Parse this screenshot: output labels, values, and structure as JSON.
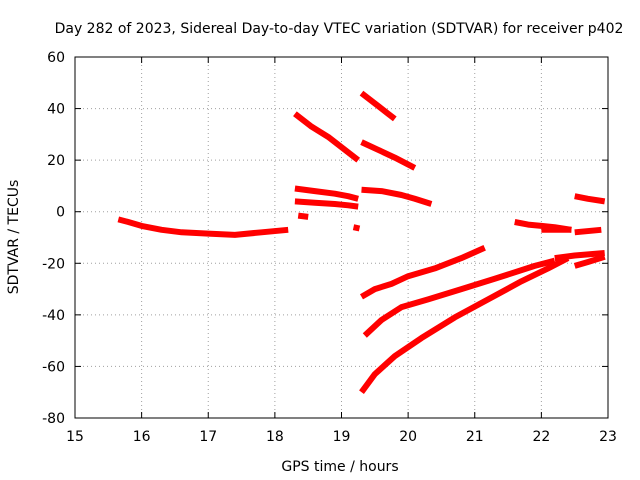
{
  "chart_data": {
    "type": "scatter",
    "title": "Day 282 of 2023, Sidereal Day-to-day VTEC variation (SDTVAR) for receiver p402",
    "xlabel": "GPS time / hours",
    "ylabel": "SDTVAR / TECUs",
    "xlim": [
      15,
      23
    ],
    "ylim": [
      -80,
      60
    ],
    "xticks": [
      "15",
      "16",
      "17",
      "18",
      "19",
      "20",
      "21",
      "22",
      "23"
    ],
    "yticks": [
      "-80",
      "-60",
      "-40",
      "-20",
      "0",
      "20",
      "40",
      "60"
    ],
    "grid": true,
    "color": "#ff0000",
    "series": [
      {
        "x": [
          15.65,
          15.8,
          16.0,
          16.3,
          16.6,
          17.0,
          17.4,
          17.8,
          18.2
        ],
        "y": [
          -3,
          -4,
          -5.5,
          -7,
          -8,
          -8.5,
          -9,
          -8,
          -7
        ]
      },
      {
        "x": [
          18.3,
          18.55,
          18.8,
          19.05,
          19.25
        ],
        "y": [
          38,
          33,
          29,
          24,
          20
        ]
      },
      {
        "x": [
          18.3,
          18.6,
          18.9,
          19.1,
          19.25
        ],
        "y": [
          9,
          8,
          7,
          6,
          5
        ]
      },
      {
        "x": [
          18.3,
          18.6,
          18.9,
          19.1,
          19.25
        ],
        "y": [
          4,
          3.5,
          3,
          2.5,
          2
        ]
      },
      {
        "x": [
          18.35,
          18.5
        ],
        "y": [
          -1.5,
          -2
        ]
      },
      {
        "x": [
          19.18,
          19.27
        ],
        "y": [
          -6,
          -6.5
        ]
      },
      {
        "x": [
          19.3,
          19.5,
          19.7,
          19.8
        ],
        "y": [
          46,
          42,
          38,
          36
        ]
      },
      {
        "x": [
          19.3,
          19.55,
          19.8,
          20.1
        ],
        "y": [
          27,
          24,
          21,
          17
        ]
      },
      {
        "x": [
          19.3,
          19.6,
          19.9,
          20.1,
          20.35
        ],
        "y": [
          8.5,
          8,
          6.5,
          5,
          3
        ]
      },
      {
        "x": [
          19.3,
          19.5,
          19.75,
          20.0,
          20.4,
          20.8,
          21.15
        ],
        "y": [
          -33,
          -30,
          -28,
          -25,
          -22,
          -18,
          -14
        ]
      },
      {
        "x": [
          19.35,
          19.6,
          19.9,
          20.3,
          20.8,
          21.3,
          21.9,
          22.2
        ],
        "y": [
          -48,
          -42,
          -37,
          -34,
          -30,
          -26,
          -21,
          -19
        ]
      },
      {
        "x": [
          19.3,
          19.5,
          19.8,
          20.2,
          20.7,
          21.2,
          21.7,
          22.1,
          22.4
        ],
        "y": [
          -70,
          -63,
          -56,
          -49,
          -41,
          -34,
          -27,
          -22,
          -18
        ]
      },
      {
        "x": [
          21.6,
          21.8,
          22.0,
          22.2,
          22.45
        ],
        "y": [
          -4,
          -5,
          -5.5,
          -6,
          -7
        ]
      },
      {
        "x": [
          22.0,
          22.45
        ],
        "y": [
          -7,
          -7
        ]
      },
      {
        "x": [
          22.5,
          22.9
        ],
        "y": [
          -8,
          -7
        ]
      },
      {
        "x": [
          22.5,
          22.7,
          22.95
        ],
        "y": [
          6,
          5,
          4
        ]
      },
      {
        "x": [
          22.2,
          22.5,
          22.95
        ],
        "y": [
          -18,
          -17,
          -16
        ]
      },
      {
        "x": [
          22.5,
          22.7,
          22.95
        ],
        "y": [
          -21,
          -19.5,
          -17.5
        ]
      }
    ]
  }
}
